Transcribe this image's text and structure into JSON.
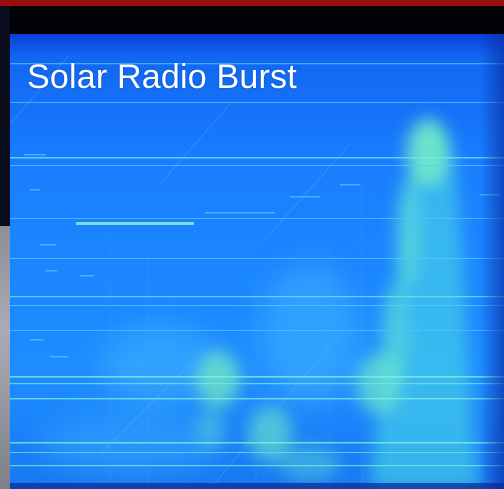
{
  "caption": {
    "text": "Solar Radio Burst"
  },
  "colors": {
    "background": "#1a7cff",
    "top_bar": "#9b0d0d",
    "band_dark": "#020308",
    "burst_glow": "#7cf5c0",
    "caption_text": "#ffffff"
  }
}
